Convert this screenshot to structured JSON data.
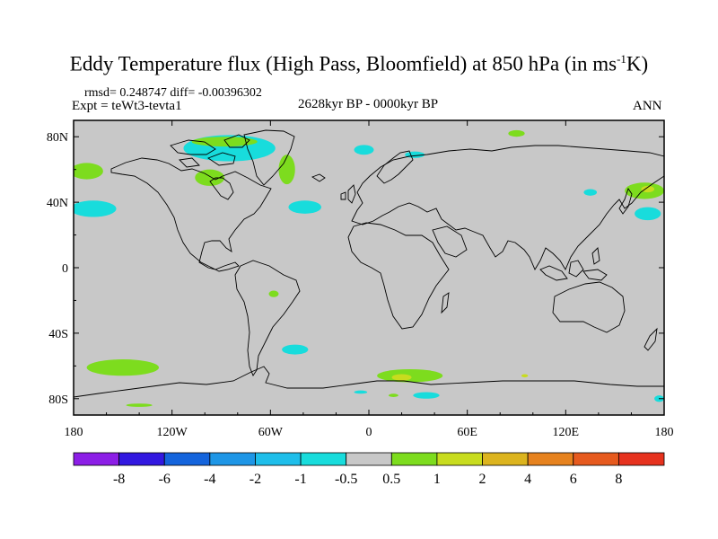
{
  "title": {
    "main": "Eddy Temperature flux (High Pass, Bloomfield) at 850 hPa (in ms",
    "sup": "-1",
    "tail": "K)"
  },
  "stats": "rmsd= 0.248747 diff= -0.00396302",
  "expt": "Expt = teWt3-tevta1",
  "period": "2628kyr BP - 0000kyr BP",
  "season": "ANN",
  "axes": {
    "x_ticks": [
      "180",
      "120W",
      "60W",
      "0",
      "60E",
      "120E",
      "180"
    ],
    "x_values": [
      -180,
      -120,
      -60,
      0,
      60,
      120,
      180
    ],
    "y_ticks": [
      "80N",
      "40N",
      "0",
      "40S",
      "80S"
    ],
    "y_values": [
      80,
      40,
      0,
      -40,
      -80
    ],
    "lon_range": [
      -180,
      180
    ],
    "lat_range": [
      -90,
      90
    ]
  },
  "colorbar": {
    "labels": [
      "-8",
      "-6",
      "-4",
      "-2",
      "-1",
      "-0.5",
      "0.5",
      "1",
      "2",
      "4",
      "6",
      "8"
    ],
    "colors": [
      "#8c1ee6",
      "#3218e0",
      "#1464dc",
      "#1e96e6",
      "#1ebeea",
      "#18dcdc",
      "#c8c8c8",
      "#7ddc1e",
      "#c8dc1e",
      "#dcb41e",
      "#e6821e",
      "#e65a1e",
      "#e6321e"
    ]
  },
  "colors": {
    "land_bg": "#c8c8c8",
    "coast": "#000000"
  },
  "anomalies": [
    {
      "lon": -168,
      "lat": 36,
      "rx": 14,
      "ry": 5,
      "color": "#18dcdc"
    },
    {
      "lon": -172,
      "lat": 59,
      "rx": 10,
      "ry": 5,
      "color": "#7ddc1e"
    },
    {
      "lon": -97,
      "lat": 55,
      "rx": 9,
      "ry": 5,
      "color": "#7ddc1e"
    },
    {
      "lon": -50,
      "lat": 60,
      "rx": 5,
      "ry": 9,
      "color": "#7ddc1e"
    },
    {
      "lon": -85,
      "lat": 73,
      "rx": 28,
      "ry": 8,
      "color": "#18dcdc"
    },
    {
      "lon": -88,
      "lat": 77,
      "rx": 20,
      "ry": 3,
      "color": "#7ddc1e"
    },
    {
      "lon": -39,
      "lat": 37,
      "rx": 10,
      "ry": 4,
      "color": "#18dcdc"
    },
    {
      "lon": -3,
      "lat": 72,
      "rx": 6,
      "ry": 3,
      "color": "#18dcdc"
    },
    {
      "lon": 28,
      "lat": 69,
      "rx": 6,
      "ry": 2,
      "color": "#18dcdc"
    },
    {
      "lon": 90,
      "lat": 82,
      "rx": 5,
      "ry": 2,
      "color": "#7ddc1e"
    },
    {
      "lon": 168,
      "lat": 47,
      "rx": 12,
      "ry": 5,
      "color": "#7ddc1e"
    },
    {
      "lon": 170,
      "lat": 48,
      "rx": 4,
      "ry": 2,
      "color": "#c8dc1e"
    },
    {
      "lon": 170,
      "lat": 33,
      "rx": 8,
      "ry": 4,
      "color": "#18dcdc"
    },
    {
      "lon": 135,
      "lat": 46,
      "rx": 4,
      "ry": 2,
      "color": "#18dcdc"
    },
    {
      "lon": -150,
      "lat": -61,
      "rx": 22,
      "ry": 5,
      "color": "#7ddc1e"
    },
    {
      "lon": -45,
      "lat": -50,
      "rx": 8,
      "ry": 3,
      "color": "#18dcdc"
    },
    {
      "lon": -58,
      "lat": -16,
      "rx": 3,
      "ry": 2,
      "color": "#7ddc1e"
    },
    {
      "lon": 25,
      "lat": -66,
      "rx": 20,
      "ry": 4,
      "color": "#7ddc1e"
    },
    {
      "lon": 20,
      "lat": -67,
      "rx": 6,
      "ry": 2,
      "color": "#c8dc1e"
    },
    {
      "lon": 35,
      "lat": -78,
      "rx": 8,
      "ry": 2,
      "color": "#18dcdc"
    },
    {
      "lon": -5,
      "lat": -76,
      "rx": 4,
      "ry": 1,
      "color": "#18dcdc"
    },
    {
      "lon": 95,
      "lat": -66,
      "rx": 2,
      "ry": 1,
      "color": "#c8dc1e"
    },
    {
      "lon": 177,
      "lat": -80,
      "rx": 3,
      "ry": 2,
      "color": "#18dcdc"
    },
    {
      "lon": -140,
      "lat": -84,
      "rx": 8,
      "ry": 1,
      "color": "#7ddc1e"
    },
    {
      "lon": 15,
      "lat": -78,
      "rx": 3,
      "ry": 1,
      "color": "#7ddc1e"
    }
  ]
}
